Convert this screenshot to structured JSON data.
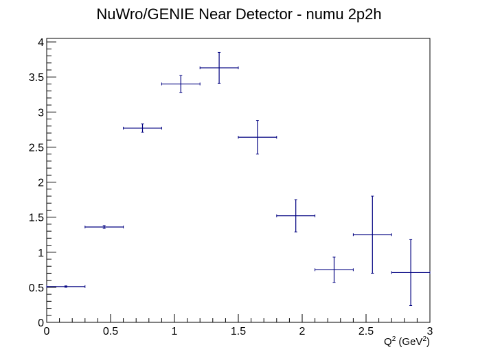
{
  "chart_data": {
    "type": "scatter",
    "title": "NuWro/GENIE Near Detector - numu 2p2h",
    "xlabel": {
      "base": "Q",
      "sup": "2",
      "unit_open": " (GeV",
      "unit_sup": "2",
      "unit_close": ")"
    },
    "ylabel": "",
    "xlim": [
      0,
      3
    ],
    "ylim": [
      0,
      4.05
    ],
    "grid": false,
    "legend": "none",
    "x_ticks": [
      {
        "value": 0,
        "label": "0"
      },
      {
        "value": 0.5,
        "label": "0.5"
      },
      {
        "value": 1,
        "label": "1"
      },
      {
        "value": 1.5,
        "label": "1.5"
      },
      {
        "value": 2,
        "label": "2"
      },
      {
        "value": 2.5,
        "label": "2.5"
      },
      {
        "value": 3,
        "label": "3"
      }
    ],
    "y_ticks": [
      {
        "value": 0,
        "label": "0"
      },
      {
        "value": 0.5,
        "label": "0.5"
      },
      {
        "value": 1,
        "label": "1"
      },
      {
        "value": 1.5,
        "label": "1.5"
      },
      {
        "value": 2,
        "label": "2"
      },
      {
        "value": 2.5,
        "label": "2.5"
      },
      {
        "value": 3,
        "label": "3"
      },
      {
        "value": 3.5,
        "label": "3.5"
      },
      {
        "value": 4,
        "label": "4"
      }
    ],
    "series": [
      {
        "color": "#000080",
        "points": [
          {
            "x": 0.15,
            "xerr": 0.15,
            "y": 0.51,
            "yerr": 0.01
          },
          {
            "x": 0.45,
            "xerr": 0.15,
            "y": 1.36,
            "yerr": 0.02
          },
          {
            "x": 0.75,
            "xerr": 0.15,
            "y": 2.77,
            "yerr": 0.06
          },
          {
            "x": 1.05,
            "xerr": 0.15,
            "y": 3.4,
            "yerr": 0.12
          },
          {
            "x": 1.35,
            "xerr": 0.15,
            "y": 3.63,
            "yerr": 0.22
          },
          {
            "x": 1.65,
            "xerr": 0.15,
            "y": 2.64,
            "yerr": 0.24
          },
          {
            "x": 1.95,
            "xerr": 0.15,
            "y": 1.52,
            "yerr": 0.23
          },
          {
            "x": 2.25,
            "xerr": 0.15,
            "y": 0.75,
            "yerr": 0.18
          },
          {
            "x": 2.55,
            "xerr": 0.15,
            "y": 1.25,
            "yerr": 0.55
          },
          {
            "x": 2.85,
            "xerr": 0.15,
            "y": 0.71,
            "yerr": 0.47
          }
        ]
      }
    ]
  }
}
